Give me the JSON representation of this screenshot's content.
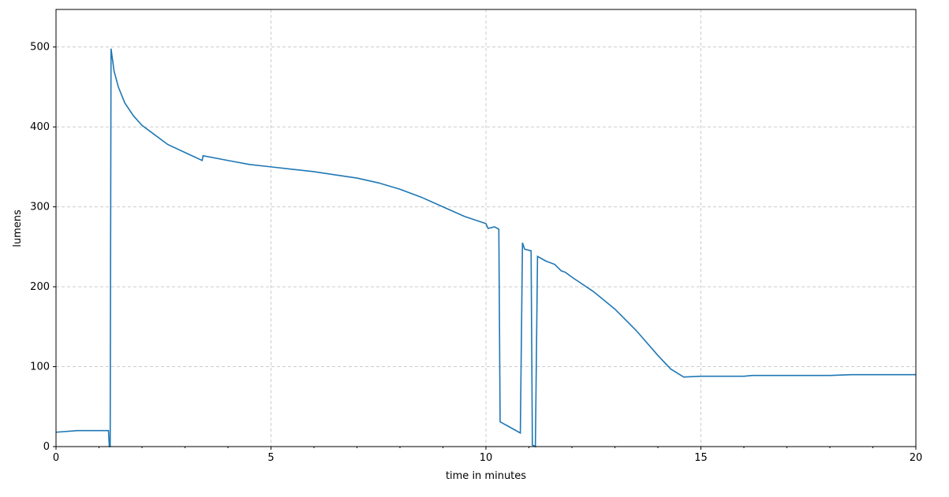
{
  "chart_data": {
    "type": "line",
    "xlabel": "time in minutes",
    "ylabel": "lumens",
    "x": [
      0,
      0.5,
      1.22,
      1.24,
      1.26,
      1.28,
      1.35,
      1.45,
      1.6,
      1.8,
      2.0,
      2.3,
      2.6,
      3.0,
      3.4,
      3.42,
      4.0,
      4.5,
      5.0,
      5.5,
      6.0,
      6.5,
      7.0,
      7.5,
      8.0,
      8.5,
      9.0,
      9.5,
      10.0,
      10.05,
      10.2,
      10.3,
      10.33,
      10.5,
      10.8,
      10.85,
      10.9,
      11.05,
      11.08,
      11.15,
      11.2,
      11.4,
      11.6,
      11.75,
      11.85,
      12.0,
      12.5,
      13.0,
      13.5,
      14.0,
      14.3,
      14.6,
      15,
      16,
      16.2,
      17,
      18,
      18.5,
      20
    ],
    "series": [
      {
        "name": "lumens",
        "color": "#1f77b4",
        "values": [
          18,
          20,
          20,
          0,
          0,
          498,
          470,
          450,
          430,
          414,
          402,
          390,
          378,
          368,
          358,
          364,
          358,
          353,
          350,
          347,
          344,
          340,
          336,
          330,
          322,
          312,
          300,
          288,
          279,
          273,
          275,
          272,
          31,
          26,
          17,
          255,
          247,
          245,
          2,
          0,
          238,
          232,
          228,
          220,
          218,
          212,
          194,
          172,
          145,
          114,
          97,
          87,
          88,
          88,
          89,
          89,
          89,
          90,
          90
        ]
      }
    ],
    "xlim": [
      0,
      20
    ],
    "xticks": [
      0,
      5,
      10,
      15,
      20
    ],
    "x_minor_ticks": [
      1,
      2,
      3,
      4,
      6,
      7,
      8,
      9,
      11,
      12,
      13,
      14,
      16,
      17,
      18,
      19
    ],
    "ylim": [
      0,
      547
    ],
    "yticks": [
      0,
      100,
      200,
      300,
      400,
      500
    ],
    "grid": true
  }
}
